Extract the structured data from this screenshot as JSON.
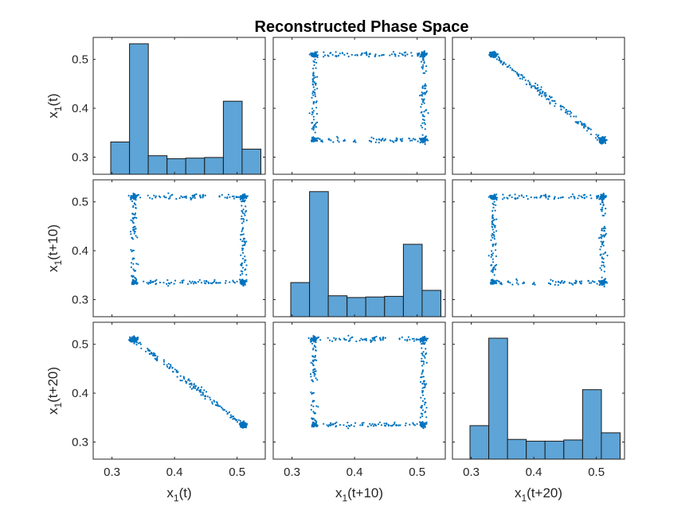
{
  "title": "Reconstructed Phase Space",
  "chart_data": {
    "type": "scatter",
    "title": "Reconstructed Phase Space",
    "variables": [
      "x1(t)",
      "x1(t+10)",
      "x1(t+20)"
    ],
    "label_parts": [
      {
        "main": "x",
        "sub": "1",
        "rest": "(t)"
      },
      {
        "main": "x",
        "sub": "1",
        "rest": "(t+10)"
      },
      {
        "main": "x",
        "sub": "1",
        "rest": "(t+20)"
      }
    ],
    "xlim": [
      0.27,
      0.545
    ],
    "ylim": [
      0.265,
      0.545
    ],
    "xticks": [
      0.3,
      0.4,
      0.5
    ],
    "yticks": [
      0.3,
      0.4,
      0.5
    ],
    "xtick_labels": [
      "0.3",
      "0.4",
      "0.5"
    ],
    "ytick_labels": [
      "0.3",
      "0.4",
      "0.5"
    ],
    "grid": false,
    "histogram_bin_edges": [
      0.298,
      0.328,
      0.358,
      0.388,
      0.418,
      0.448,
      0.478,
      0.508,
      0.538
    ],
    "histogram_counts": [
      [
        54,
        218,
        31,
        26,
        27,
        28,
        122,
        42
      ],
      [
        57,
        209,
        35,
        32,
        33,
        34,
        121,
        44
      ],
      [
        56,
        202,
        33,
        30,
        30,
        32,
        116,
        44
      ]
    ],
    "scatter_shapes": {
      "lag10": "oval loop between (0.33, 0.33) and (0.51, 0.51)",
      "lag20": "rectangular loop x 0.32–0.52, y 0.325–0.515"
    },
    "colors": {
      "bar_fill": "#5ea4d6",
      "bar_edge": "#1a1a1a",
      "marker": "#0072bd"
    }
  }
}
